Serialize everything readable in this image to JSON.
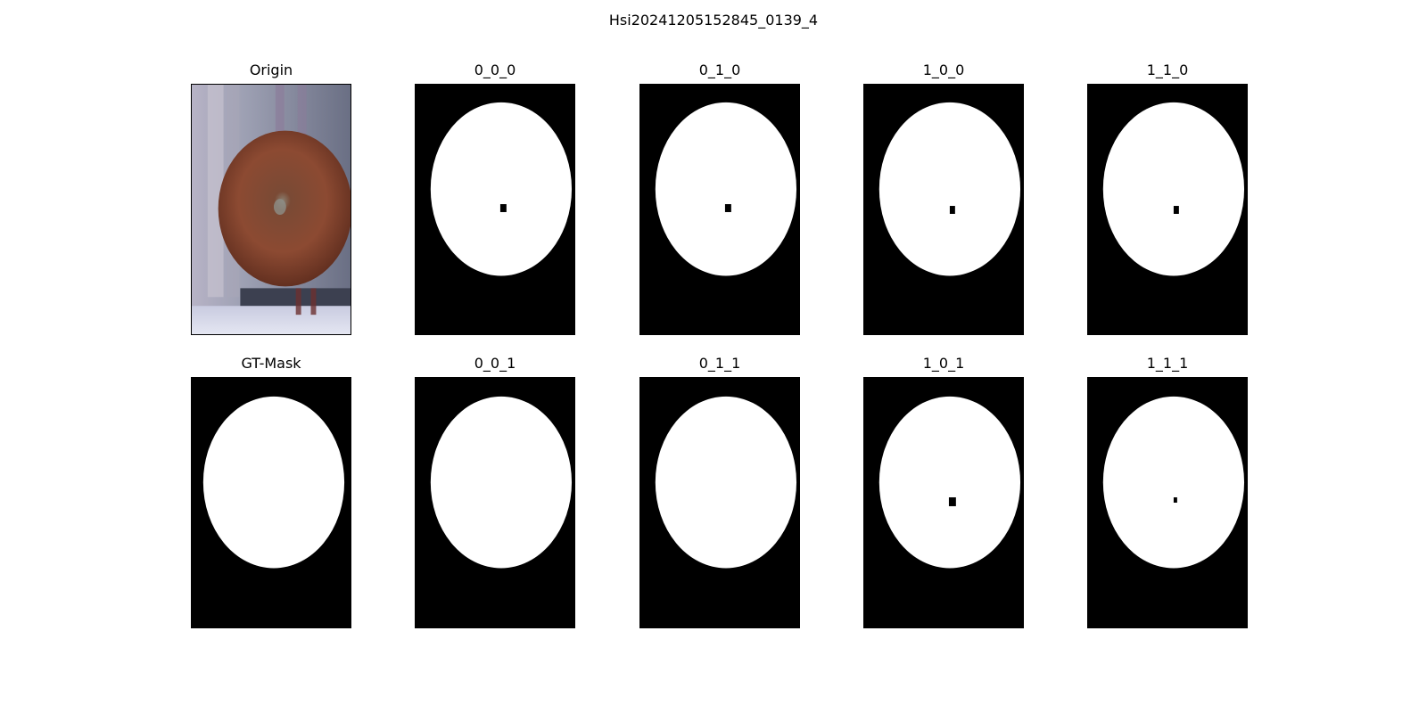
{
  "figure": {
    "title": "Hsi20241205152845_0139_4"
  },
  "panels": [
    {
      "title": "Origin",
      "kind": "photo"
    },
    {
      "title": "0_0_0",
      "kind": "mask",
      "cx": 97,
      "cy": 118,
      "rx": 80,
      "ry": 98,
      "holes": [
        [
          56,
          140,
          7,
          9
        ]
      ]
    },
    {
      "title": "0_1_0",
      "kind": "mask",
      "cx": 97,
      "cy": 118,
      "rx": 80,
      "ry": 98,
      "holes": [
        [
          56,
          140,
          7,
          9
        ]
      ]
    },
    {
      "title": "1_0_0",
      "kind": "mask",
      "cx": 97,
      "cy": 118,
      "rx": 80,
      "ry": 98,
      "holes": [
        [
          57,
          142,
          6,
          9
        ]
      ]
    },
    {
      "title": "1_1_0",
      "kind": "mask",
      "cx": 97,
      "cy": 118,
      "rx": 80,
      "ry": 98,
      "holes": [
        [
          57,
          142,
          6,
          9
        ]
      ]
    },
    {
      "title": "GT-Mask",
      "kind": "mask",
      "cx": 93,
      "cy": 118,
      "rx": 80,
      "ry": 97,
      "holes": []
    },
    {
      "title": "0_0_1",
      "kind": "mask",
      "cx": 97,
      "cy": 118,
      "rx": 80,
      "ry": 97,
      "holes": []
    },
    {
      "title": "0_1_1",
      "kind": "mask",
      "cx": 97,
      "cy": 118,
      "rx": 80,
      "ry": 97,
      "holes": []
    },
    {
      "title": "1_0_1",
      "kind": "mask",
      "cx": 97,
      "cy": 118,
      "rx": 80,
      "ry": 97,
      "holes": [
        [
          56,
          140,
          8,
          10
        ]
      ]
    },
    {
      "title": "1_1_1",
      "kind": "mask",
      "cx": 97,
      "cy": 118,
      "rx": 80,
      "ry": 97,
      "holes": [
        [
          57,
          140,
          4,
          6
        ]
      ]
    }
  ],
  "colors": {
    "mask_fg": "#ffffff",
    "mask_bg": "#000000"
  }
}
